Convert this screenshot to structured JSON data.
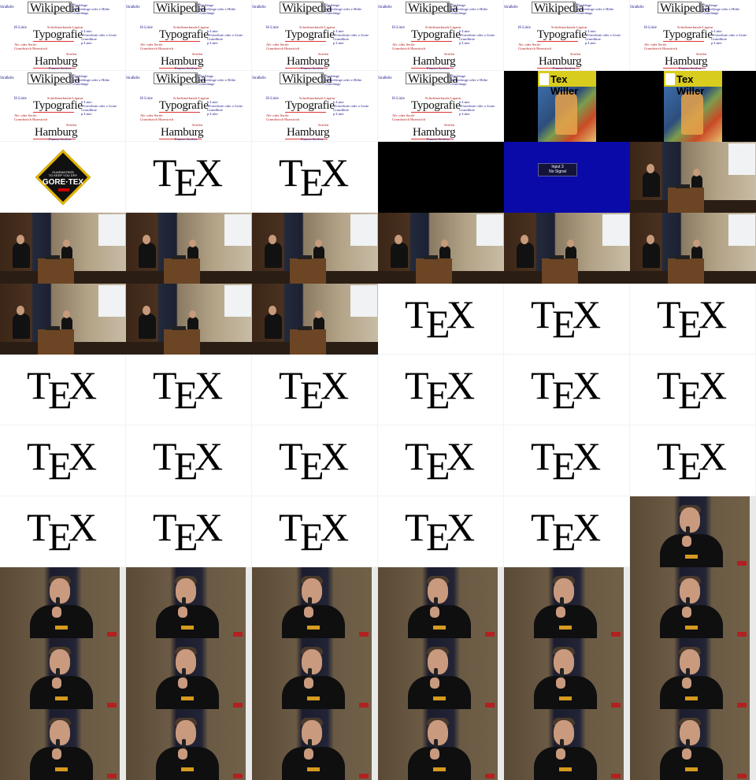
{
  "wiki_slide": {
    "left_label": "Straßelle",
    "word": "Wikipedia",
    "right_lines": [
      "Überlänge",
      "Wörterlänge oder x-Höhe",
      "Unterlänge"
    ],
    "typo_left": "H-Linie",
    "typo_sup": "Schriftmerkmale  Ligatur",
    "typo_word": "Typografie",
    "typo_right": [
      "k-Linie",
      "Wörterlinie oder x-Linie",
      "Grundlinie",
      "p-Linie"
    ],
    "typo_bottom": [
      "Ab- oder  Serife",
      "Grundstrich  Haarstrich"
    ],
    "hamburg_top": "Serifen",
    "hamburg_word": "Hamburg",
    "hamburg_bottom": "Punzen  Serifen"
  },
  "tex_logo": {
    "T": "T",
    "E": "E",
    "X": "X"
  },
  "comic": {
    "title": "Tex Willer"
  },
  "goretex": {
    "line1": "GUARANTEED",
    "line2": "TO KEEP YOU DRY",
    "brand": "GORE·TEX"
  },
  "no_signal": {
    "line1": "Input 3",
    "line2": "No Signal"
  },
  "cells": [
    "wiki",
    "wiki",
    "wiki",
    "wiki",
    "wiki",
    "wiki",
    "wiki",
    "wiki",
    "wiki",
    "wiki",
    "comic",
    "comic",
    "gore",
    "tex",
    "tex",
    "black",
    "nosig",
    "room",
    "room",
    "room",
    "room",
    "room",
    "room",
    "room",
    "room",
    "room",
    "room",
    "tex",
    "tex",
    "tex",
    "tex",
    "tex",
    "tex",
    "tex",
    "tex",
    "tex",
    "tex",
    "tex",
    "tex",
    "tex",
    "tex",
    "tex",
    "tex",
    "tex",
    "tex",
    "tex",
    "tex",
    "speaker",
    "speaker",
    "speaker",
    "speaker",
    "speaker",
    "speaker",
    "speaker",
    "speaker",
    "speaker",
    "speaker",
    "speaker",
    "speaker",
    "speaker",
    "speaker",
    "speaker",
    "speaker",
    "speaker",
    "speaker",
    "speaker"
  ]
}
